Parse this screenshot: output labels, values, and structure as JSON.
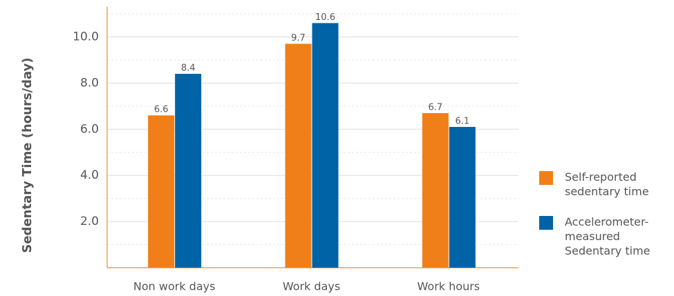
{
  "chart_data": {
    "type": "bar",
    "y_label": "Sedentary Time (hours/day)",
    "categories": [
      "Non work days",
      "Work days",
      "Work hours"
    ],
    "series": [
      {
        "name": "Self-reported sedentary time",
        "color": "#f07f1a",
        "values": [
          6.6,
          9.7,
          6.7
        ]
      },
      {
        "name": "Accelerometer-measured Sedentary time",
        "color": "#0063a6",
        "values": [
          8.4,
          10.6,
          6.1
        ]
      }
    ],
    "ylim": [
      0,
      11.3
    ],
    "yticks": [
      {
        "value": 2,
        "label": "2.0"
      },
      {
        "value": 4,
        "label": "4.0"
      },
      {
        "value": 6,
        "label": "6.0"
      },
      {
        "value": 8,
        "label": "8.0"
      },
      {
        "value": 10,
        "label": "10.0"
      }
    ],
    "minor_yticks": [
      1,
      3,
      5,
      7,
      9,
      11
    ],
    "grid": true,
    "legend": "right"
  }
}
